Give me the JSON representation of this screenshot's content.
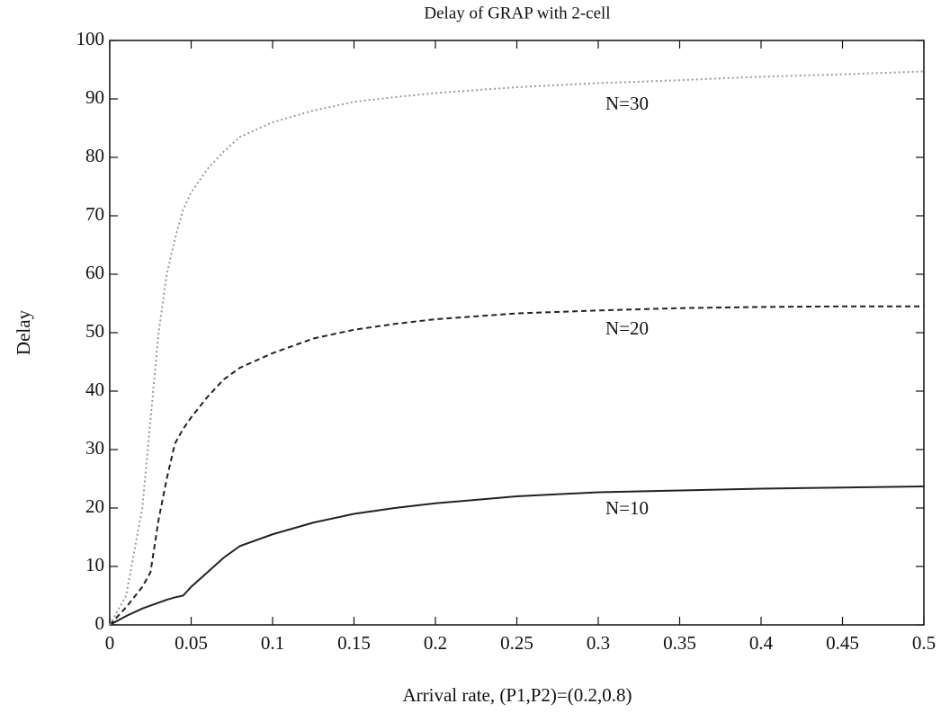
{
  "chart_data": {
    "type": "line",
    "title": "Delay of GRAP with 2-cell",
    "x_label": "Arrival rate, (P1,P2)=(0.2,0.8)",
    "y_label": "Delay",
    "x": [
      0,
      0.01,
      0.02,
      0.025,
      0.03,
      0.035,
      0.04,
      0.045,
      0.05,
      0.06,
      0.07,
      0.08,
      0.1,
      0.125,
      0.15,
      0.175,
      0.2,
      0.25,
      0.3,
      0.35,
      0.4,
      0.45,
      0.5
    ],
    "series": [
      {
        "name": "N=10",
        "color": "#222222",
        "style": "solid",
        "values": [
          0,
          1.5,
          2.8,
          3.3,
          3.8,
          4.3,
          4.7,
          5,
          6.5,
          9,
          11.5,
          13.5,
          15.5,
          17.5,
          19,
          20,
          20.8,
          22,
          22.7,
          23,
          23.3,
          23.5,
          23.7
        ]
      },
      {
        "name": "N=20",
        "color": "#222222",
        "style": "dashed",
        "values": [
          0,
          3,
          6.5,
          9,
          18,
          25,
          31,
          33.5,
          35.5,
          39,
          42,
          44,
          46.5,
          49,
          50.5,
          51.5,
          52.3,
          53.3,
          53.8,
          54.2,
          54.4,
          54.5,
          54.5
        ]
      },
      {
        "name": "N=30",
        "color": "#9a9a9a",
        "style": "dotted",
        "values": [
          0,
          5,
          20,
          35,
          50,
          60,
          66,
          71,
          74,
          78,
          81,
          83.5,
          86,
          88,
          89.5,
          90.3,
          91,
          92,
          92.7,
          93.2,
          93.8,
          94.2,
          94.7
        ]
      }
    ],
    "xlim": [
      0,
      0.5
    ],
    "xticks": [
      0,
      0.05,
      0.1,
      0.15,
      0.2,
      0.25,
      0.3,
      0.35,
      0.4,
      0.45,
      0.5
    ],
    "ylim": [
      0,
      100
    ],
    "yticks": [
      0,
      10,
      20,
      30,
      40,
      50,
      60,
      70,
      80,
      90,
      100
    ],
    "grid": false
  }
}
